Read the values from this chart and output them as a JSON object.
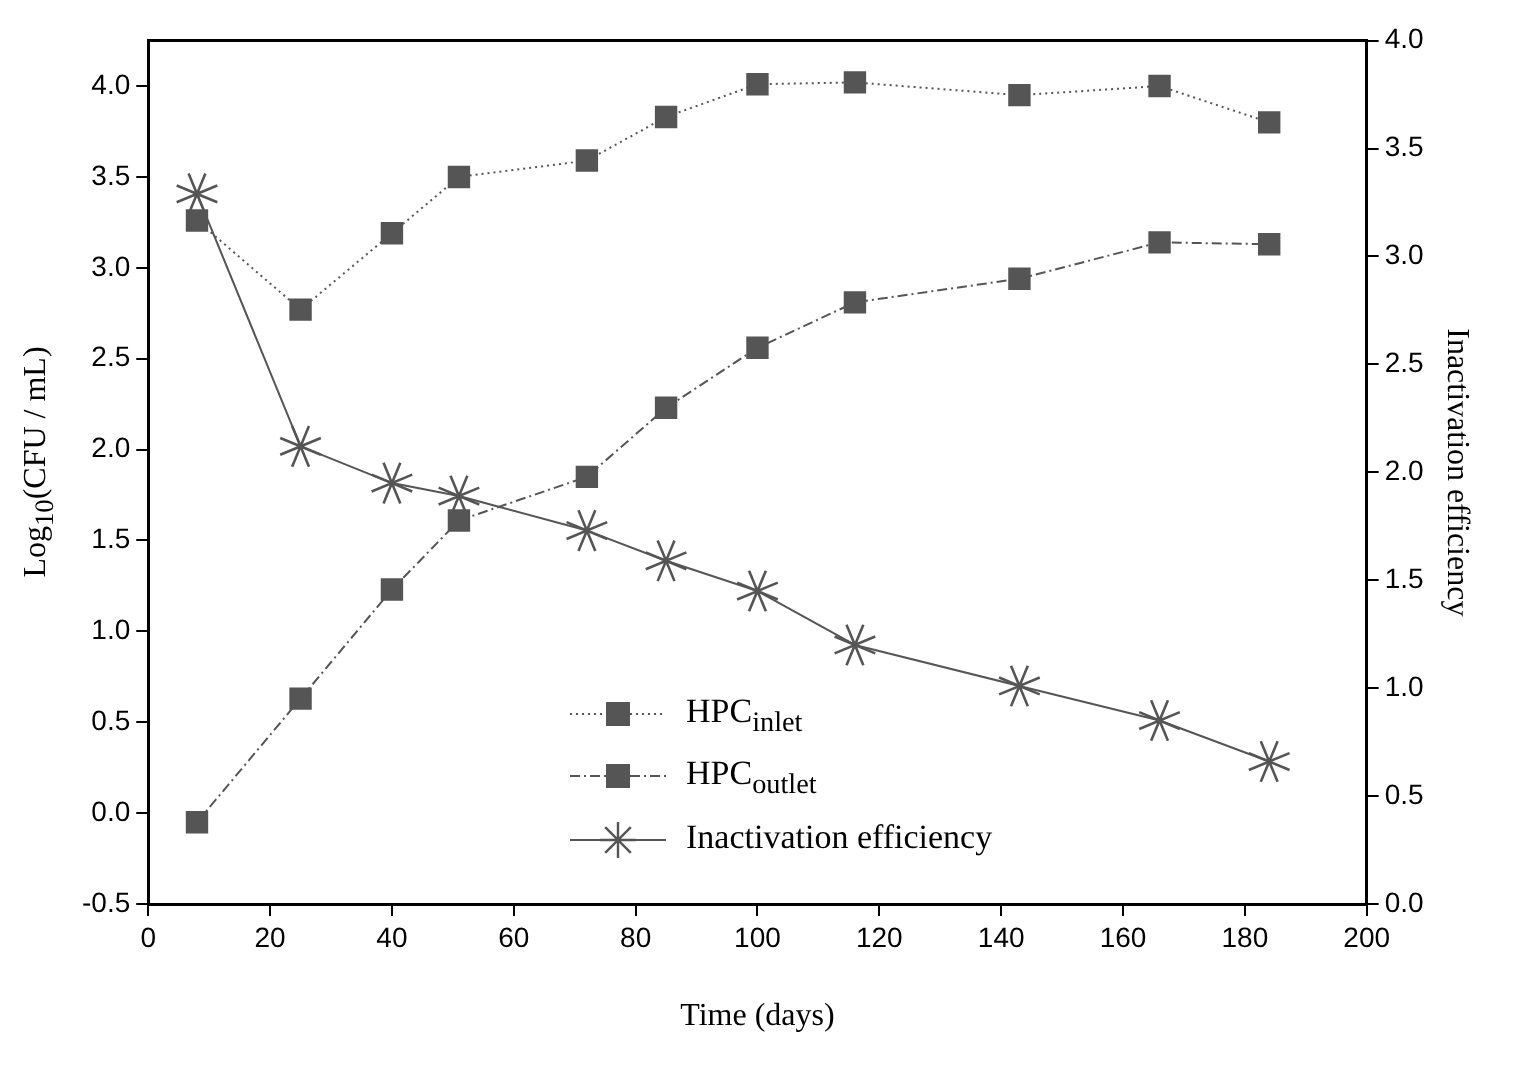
{
  "chart_data": {
    "type": "line",
    "xlabel": "Time (days)",
    "ylabel": "Log$_{10}$(CFU / mL)",
    "y2label": "Inactivation efficiency",
    "x": [
      8,
      25,
      40,
      51,
      72,
      85,
      100,
      116,
      143,
      166,
      184
    ],
    "series": [
      {
        "name": "HPC$_{inlet}$",
        "color": "#555555",
        "marker": "square",
        "line_style": "dotted",
        "values": [
          3.26,
          2.77,
          3.19,
          3.5,
          3.59,
          3.83,
          4.01,
          4.02,
          3.95,
          4.0,
          3.8
        ]
      },
      {
        "name": "HPC$_{outlet}$",
        "color": "#555555",
        "marker": "square",
        "line_style": "dashed",
        "values": [
          -0.05,
          0.63,
          1.23,
          1.61,
          1.85,
          2.23,
          2.56,
          2.81,
          2.94,
          3.14,
          3.13
        ]
      },
      {
        "name": "Inactivation efficiency",
        "color": "#555555",
        "marker": "cross",
        "line_style": "solid",
        "axis": "y2",
        "values": [
          3.29,
          2.12,
          1.95,
          1.89,
          1.73,
          1.59,
          1.45,
          1.2,
          1.01,
          0.85,
          0.66
        ]
      }
    ],
    "xlim": [
      0,
      200
    ],
    "xticks": [
      0,
      20,
      40,
      60,
      80,
      100,
      120,
      140,
      160,
      180,
      200
    ],
    "ylim": [
      -0.5,
      4.25
    ],
    "yticks": [
      -0.5,
      {
        "value": 0,
        "label": "0.0"
      },
      0.5,
      {
        "value": 1,
        "label": "1.0"
      },
      1.5,
      {
        "value": 2,
        "label": "2.0"
      },
      2.5,
      {
        "value": 3,
        "label": "3.0"
      },
      3.5,
      {
        "value": 4,
        "label": "4.0"
      }
    ],
    "y2lim": [
      0,
      4.0
    ],
    "y2ticks": [
      {
        "value": 0,
        "label": "0.0"
      },
      0.5,
      {
        "value": 1,
        "label": "1.0"
      },
      1.5,
      {
        "value": 2,
        "label": "2.0"
      },
      2.5,
      {
        "value": 3,
        "label": "3.0"
      },
      3.5,
      {
        "value": 4,
        "label": "4.0"
      }
    ],
    "grid": false,
    "legend": "bottom"
  }
}
